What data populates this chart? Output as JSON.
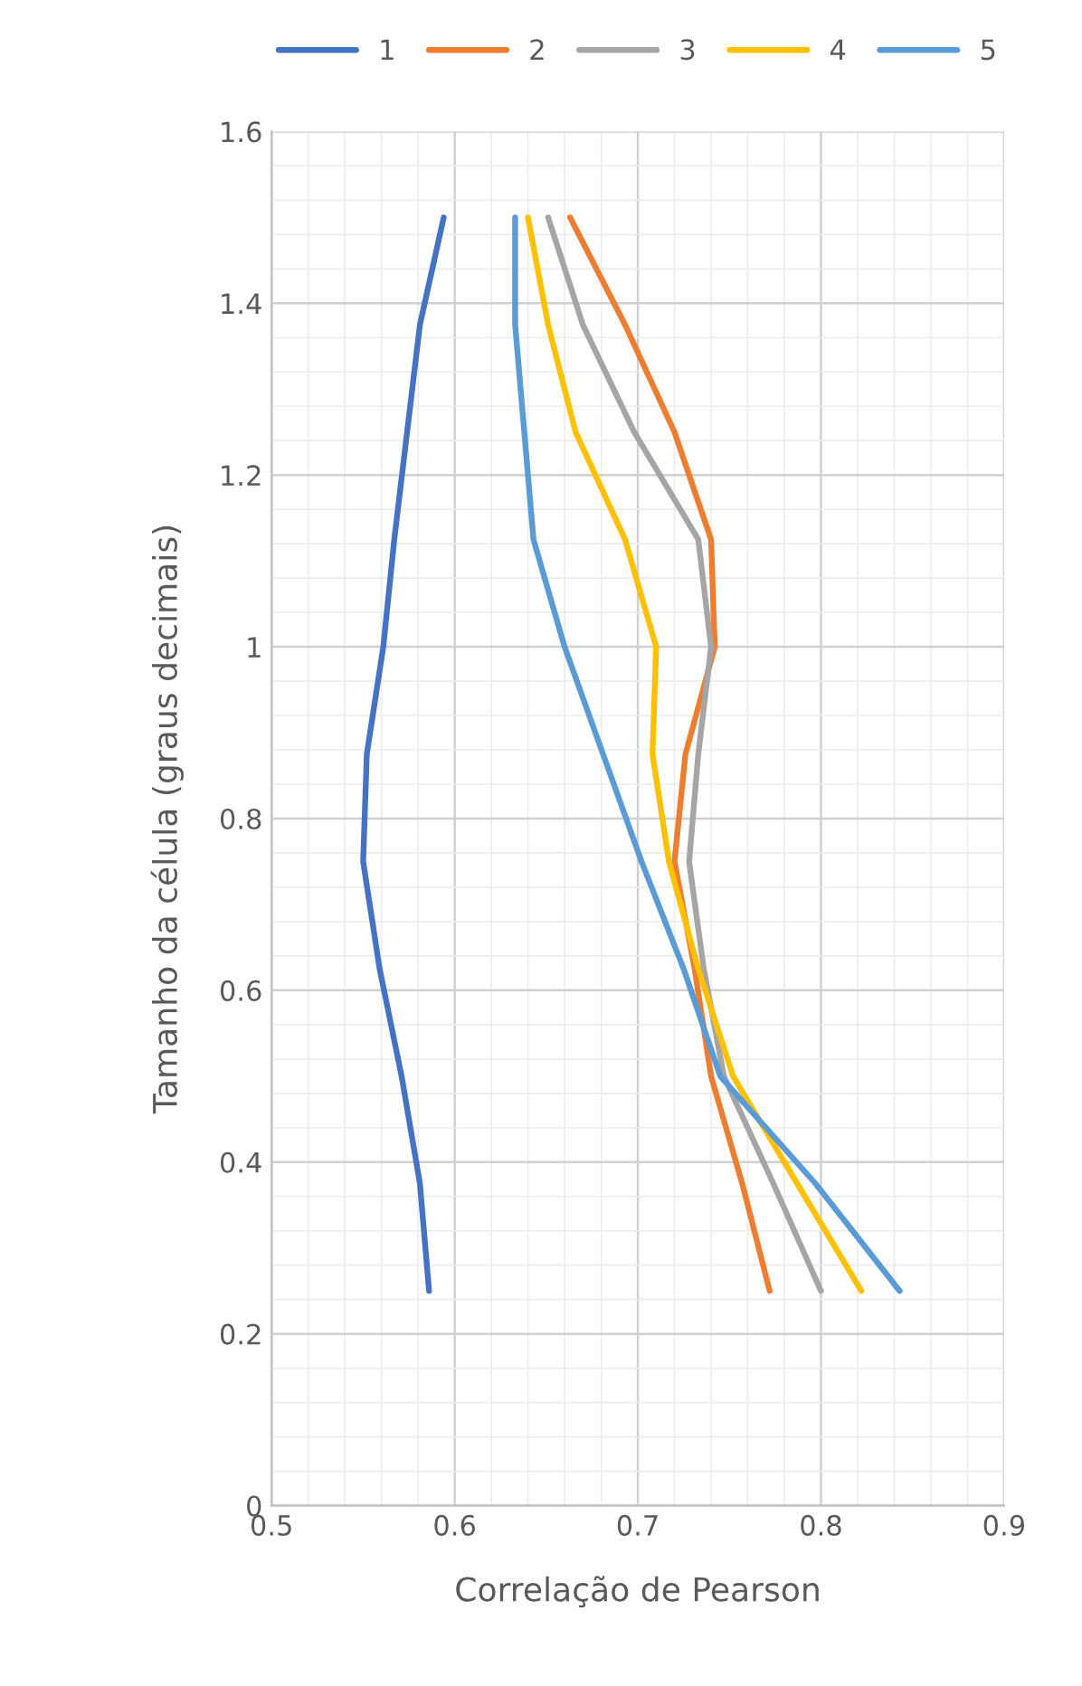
{
  "chart_data": {
    "type": "line",
    "xlabel": "Correlação de Pearson",
    "ylabel": "Tamanho da célula (graus decimais)",
    "series": [
      {
        "name": "1",
        "color": "#4472c4",
        "x": [
          0.586,
          0.581,
          0.571,
          0.559,
          0.55,
          0.552,
          0.561,
          0.567,
          0.574,
          0.581,
          0.594
        ],
        "values": [
          0.25,
          0.375,
          0.5,
          0.625,
          0.75,
          0.875,
          1.0,
          1.125,
          1.25,
          1.375,
          1.5
        ]
      },
      {
        "name": "2",
        "color": "#ed7d31",
        "x": [
          0.772,
          0.757,
          0.74,
          0.731,
          0.72,
          0.726,
          0.742,
          0.74,
          0.72,
          0.693,
          0.663
        ],
        "values": [
          0.25,
          0.375,
          0.5,
          0.625,
          0.75,
          0.875,
          1.0,
          1.125,
          1.25,
          1.375,
          1.5
        ]
      },
      {
        "name": "3",
        "color": "#a5a5a5",
        "x": [
          0.8,
          0.774,
          0.747,
          0.736,
          0.728,
          0.733,
          0.74,
          0.733,
          0.698,
          0.67,
          0.651
        ],
        "values": [
          0.25,
          0.375,
          0.5,
          0.625,
          0.75,
          0.875,
          1.0,
          1.125,
          1.25,
          1.375,
          1.5
        ]
      },
      {
        "name": "4",
        "color": "#ffc000",
        "x": [
          0.822,
          0.787,
          0.752,
          0.733,
          0.717,
          0.708,
          0.71,
          0.693,
          0.666,
          0.651,
          0.64
        ],
        "values": [
          0.25,
          0.375,
          0.5,
          0.625,
          0.75,
          0.875,
          1.0,
          1.125,
          1.25,
          1.375,
          1.5
        ]
      },
      {
        "name": "5",
        "color": "#5b9bd5",
        "x": [
          0.843,
          0.797,
          0.745,
          0.725,
          0.702,
          0.681,
          0.66,
          0.643,
          0.638,
          0.633,
          0.633
        ],
        "values": [
          0.25,
          0.375,
          0.5,
          0.625,
          0.75,
          0.875,
          1.0,
          1.125,
          1.25,
          1.375,
          1.5
        ]
      }
    ],
    "xlim": [
      0.5,
      0.9
    ],
    "xticks": [
      0.5,
      0.6,
      0.7,
      0.8,
      0.9
    ],
    "ylim": [
      0,
      1.6
    ],
    "yticks": [
      0,
      0.2,
      0.4,
      0.6,
      0.8,
      1,
      1.2,
      1.4,
      1.6
    ],
    "grid": true,
    "legend": "top",
    "marker": "none",
    "line_style": "solid"
  }
}
